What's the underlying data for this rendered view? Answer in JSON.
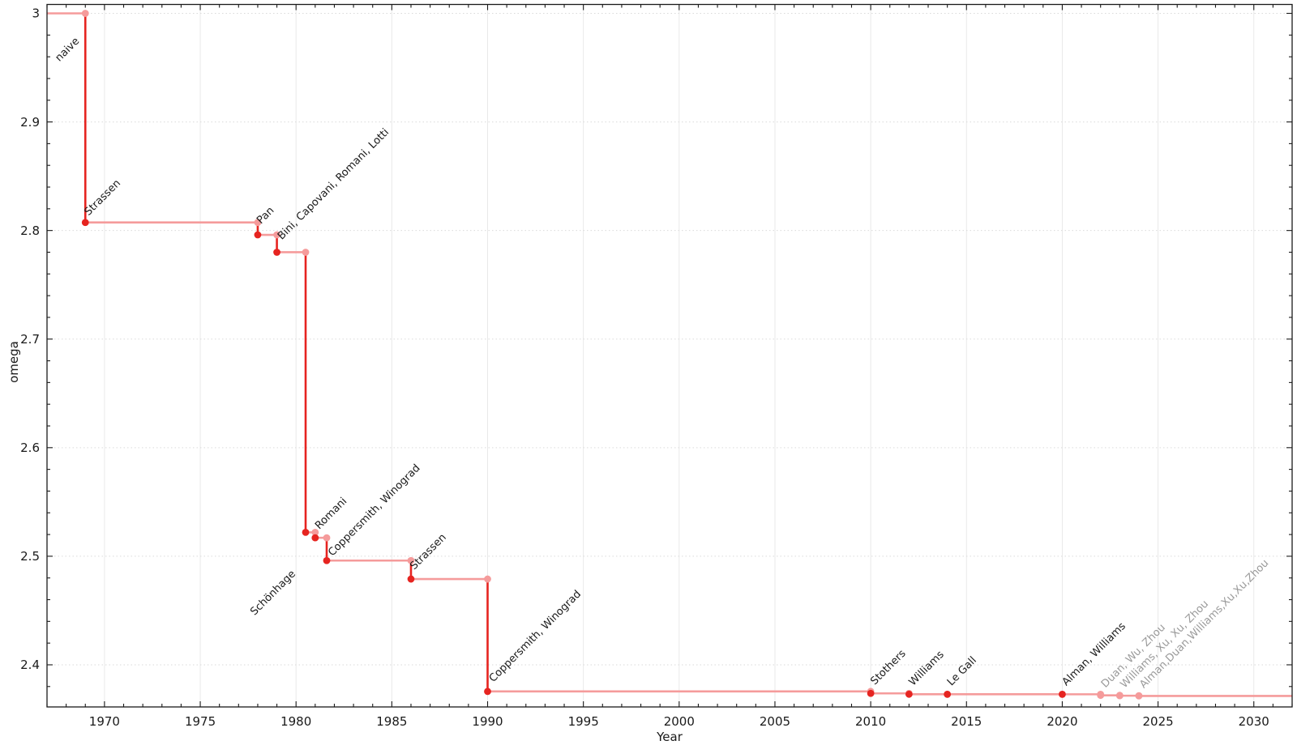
{
  "chart_data": {
    "type": "line",
    "subtype": "step-after",
    "title": "",
    "xlabel": "Year",
    "ylabel": "omega",
    "xlim": [
      1967,
      2032
    ],
    "ylim": [
      2.3612,
      3.0082
    ],
    "grid": "major-both",
    "legend": "none",
    "x_ticks": [
      {
        "value": 1970,
        "label": "1970"
      },
      {
        "value": 1975,
        "label": "1975"
      },
      {
        "value": 1980,
        "label": "1980"
      },
      {
        "value": 1985,
        "label": "1985"
      },
      {
        "value": 1990,
        "label": "1990"
      },
      {
        "value": 1995,
        "label": "1995"
      },
      {
        "value": 2000,
        "label": "2000"
      },
      {
        "value": 2005,
        "label": "2005"
      },
      {
        "value": 2010,
        "label": "2010"
      },
      {
        "value": 2015,
        "label": "2015"
      },
      {
        "value": 2020,
        "label": "2020"
      },
      {
        "value": 2025,
        "label": "2025"
      },
      {
        "value": 2030,
        "label": "2030"
      }
    ],
    "y_ticks": [
      {
        "value": 3.0,
        "label": "3"
      },
      {
        "value": 2.9,
        "label": "2.9"
      },
      {
        "value": 2.8,
        "label": "2.8"
      },
      {
        "value": 2.7,
        "label": "2.7"
      },
      {
        "value": 2.6,
        "label": "2.6"
      },
      {
        "value": 2.5,
        "label": "2.5"
      },
      {
        "value": 2.4,
        "label": "2.4"
      }
    ],
    "x_minor_step": 1,
    "y_minor_step": 0.02,
    "initial_value": 3.0,
    "start_annotation": {
      "label": "naive",
      "year": 1969,
      "omega": 3.0,
      "label_offset": [
        -32,
        60
      ]
    },
    "points": [
      {
        "label": "Strassen",
        "year": 1969,
        "omega": 2.8074,
        "muted": false,
        "label_offset": [
          4,
          -8
        ]
      },
      {
        "label": "Pan",
        "year": 1978,
        "omega": 2.796,
        "muted": false,
        "label_offset": [
          4,
          -13
        ]
      },
      {
        "label": "Bini, Capovani, Romani, Lotti",
        "year": 1979,
        "omega": 2.78,
        "muted": false,
        "label_offset": [
          6,
          -15
        ]
      },
      {
        "label": "Schönhage",
        "year": 1980.5,
        "omega": 2.522,
        "muted": false,
        "label_offset": [
          -63,
          103
        ]
      },
      {
        "label": "Romani",
        "year": 1981,
        "omega": 2.517,
        "muted": false,
        "label_offset": [
          5,
          -10
        ]
      },
      {
        "label": "Coppersmith, Winograd",
        "year": 1981.6,
        "omega": 2.496,
        "muted": false,
        "label_offset": [
          7,
          -5
        ]
      },
      {
        "label": "Strassen",
        "year": 1986,
        "omega": 2.479,
        "muted": false,
        "label_offset": [
          4,
          -11
        ]
      },
      {
        "label": "Coppersmith, Winograd",
        "year": 1990,
        "omega": 2.3755,
        "muted": false,
        "label_offset": [
          7,
          -11
        ]
      },
      {
        "label": "Stothers",
        "year": 2010,
        "omega": 2.3737,
        "muted": false,
        "label_offset": [
          5,
          -10
        ]
      },
      {
        "label": "Williams",
        "year": 2012,
        "omega": 2.3729,
        "muted": false,
        "label_offset": [
          5,
          -10
        ]
      },
      {
        "label": "Le Gall",
        "year": 2014,
        "omega": 2.3728639,
        "muted": false,
        "label_offset": [
          5,
          -10
        ]
      },
      {
        "label": "Alman, Williams",
        "year": 2020,
        "omega": 2.3728596,
        "muted": false,
        "label_offset": [
          5,
          -10
        ]
      },
      {
        "label": "Duan, Wu, Zhou",
        "year": 2022,
        "omega": 2.371866,
        "muted": true,
        "label_offset": [
          6,
          -9
        ]
      },
      {
        "label": "Williams, Xu, Xu, Zhou",
        "year": 2023,
        "omega": 2.371552,
        "muted": true,
        "label_offset": [
          6,
          -9
        ]
      },
      {
        "label": "Alman,Duan,Williams,Xu,Xu,Zhou",
        "year": 2024,
        "omega": 2.371339,
        "muted": true,
        "label_offset": [
          6,
          -9
        ]
      }
    ],
    "colors": {
      "step_horizontal": "#f59b9b",
      "step_vertical": "#e62420",
      "marker_new": "#e62420",
      "marker_old": "#f59b9b",
      "label_text": "#1a1a1a",
      "label_text_muted": "#9a9a9a",
      "grid_vertical": "#e9e9e9",
      "grid_horizontal": "#dadada",
      "axis": "#1a1a1a"
    }
  }
}
